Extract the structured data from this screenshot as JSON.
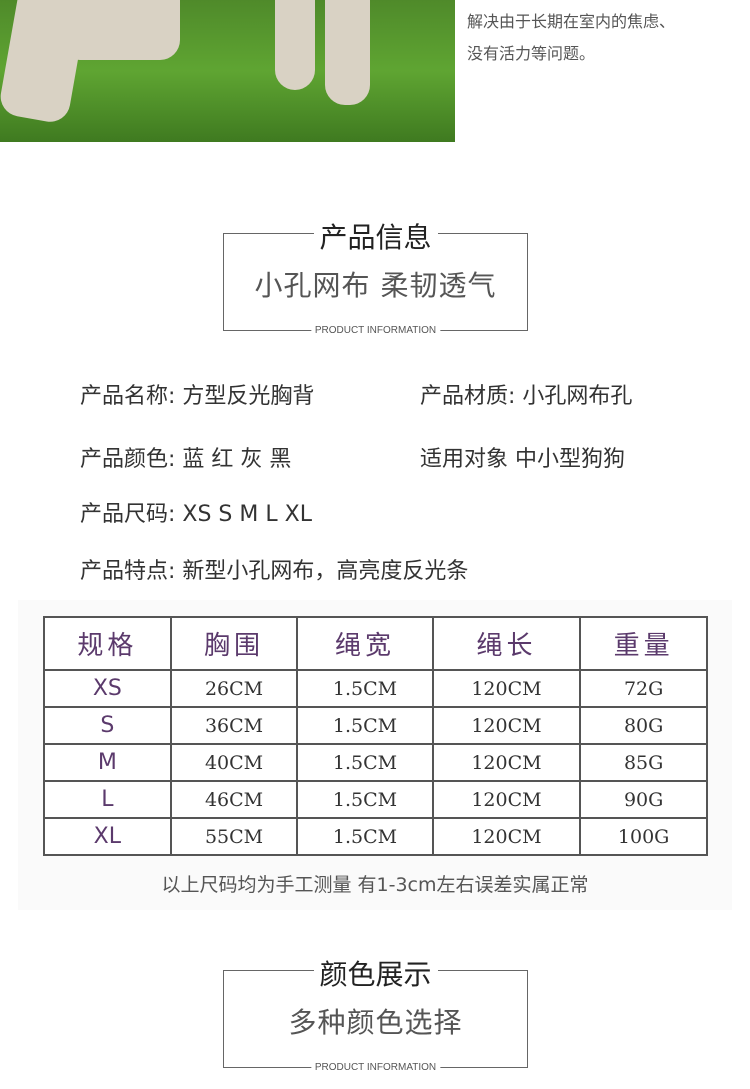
{
  "intro": {
    "line1": "解决由于长期在室内的焦虑、",
    "line2": "没有活力等问题。"
  },
  "section1": {
    "title": "产品信息",
    "subtitle": "小孔网布 柔韧透气",
    "english": "PRODUCT INFORMATION"
  },
  "info": {
    "name": "产品名称: 方型反光胸背",
    "material": "产品材质: 小孔网布孔",
    "colors": "产品颜色: 蓝  红  灰  黑",
    "target": "适用对象 中小型狗狗",
    "sizes": "产品尺码: XS  S  M  L XL",
    "features": "产品特点: 新型小孔网布，高亮度反光条"
  },
  "table": {
    "headers": [
      "规格",
      "胸围",
      "绳宽",
      "绳长",
      "重量"
    ],
    "rows": [
      [
        "XS",
        "26CM",
        "1.5CM",
        "120CM",
        "72G"
      ],
      [
        "S",
        "36CM",
        "1.5CM",
        "120CM",
        "80G"
      ],
      [
        "M",
        "40CM",
        "1.5CM",
        "120CM",
        "85G"
      ],
      [
        "L",
        "46CM",
        "1.5CM",
        "120CM",
        "90G"
      ],
      [
        "XL",
        "55CM",
        "1.5CM",
        "120CM",
        "100G"
      ]
    ],
    "note": "以上尺码均为手工测量  有1-3cm左右误差实属正常"
  },
  "section2": {
    "title": "颜色展示",
    "subtitle": "多种颜色选择",
    "english": "PRODUCT INFORMATION"
  }
}
